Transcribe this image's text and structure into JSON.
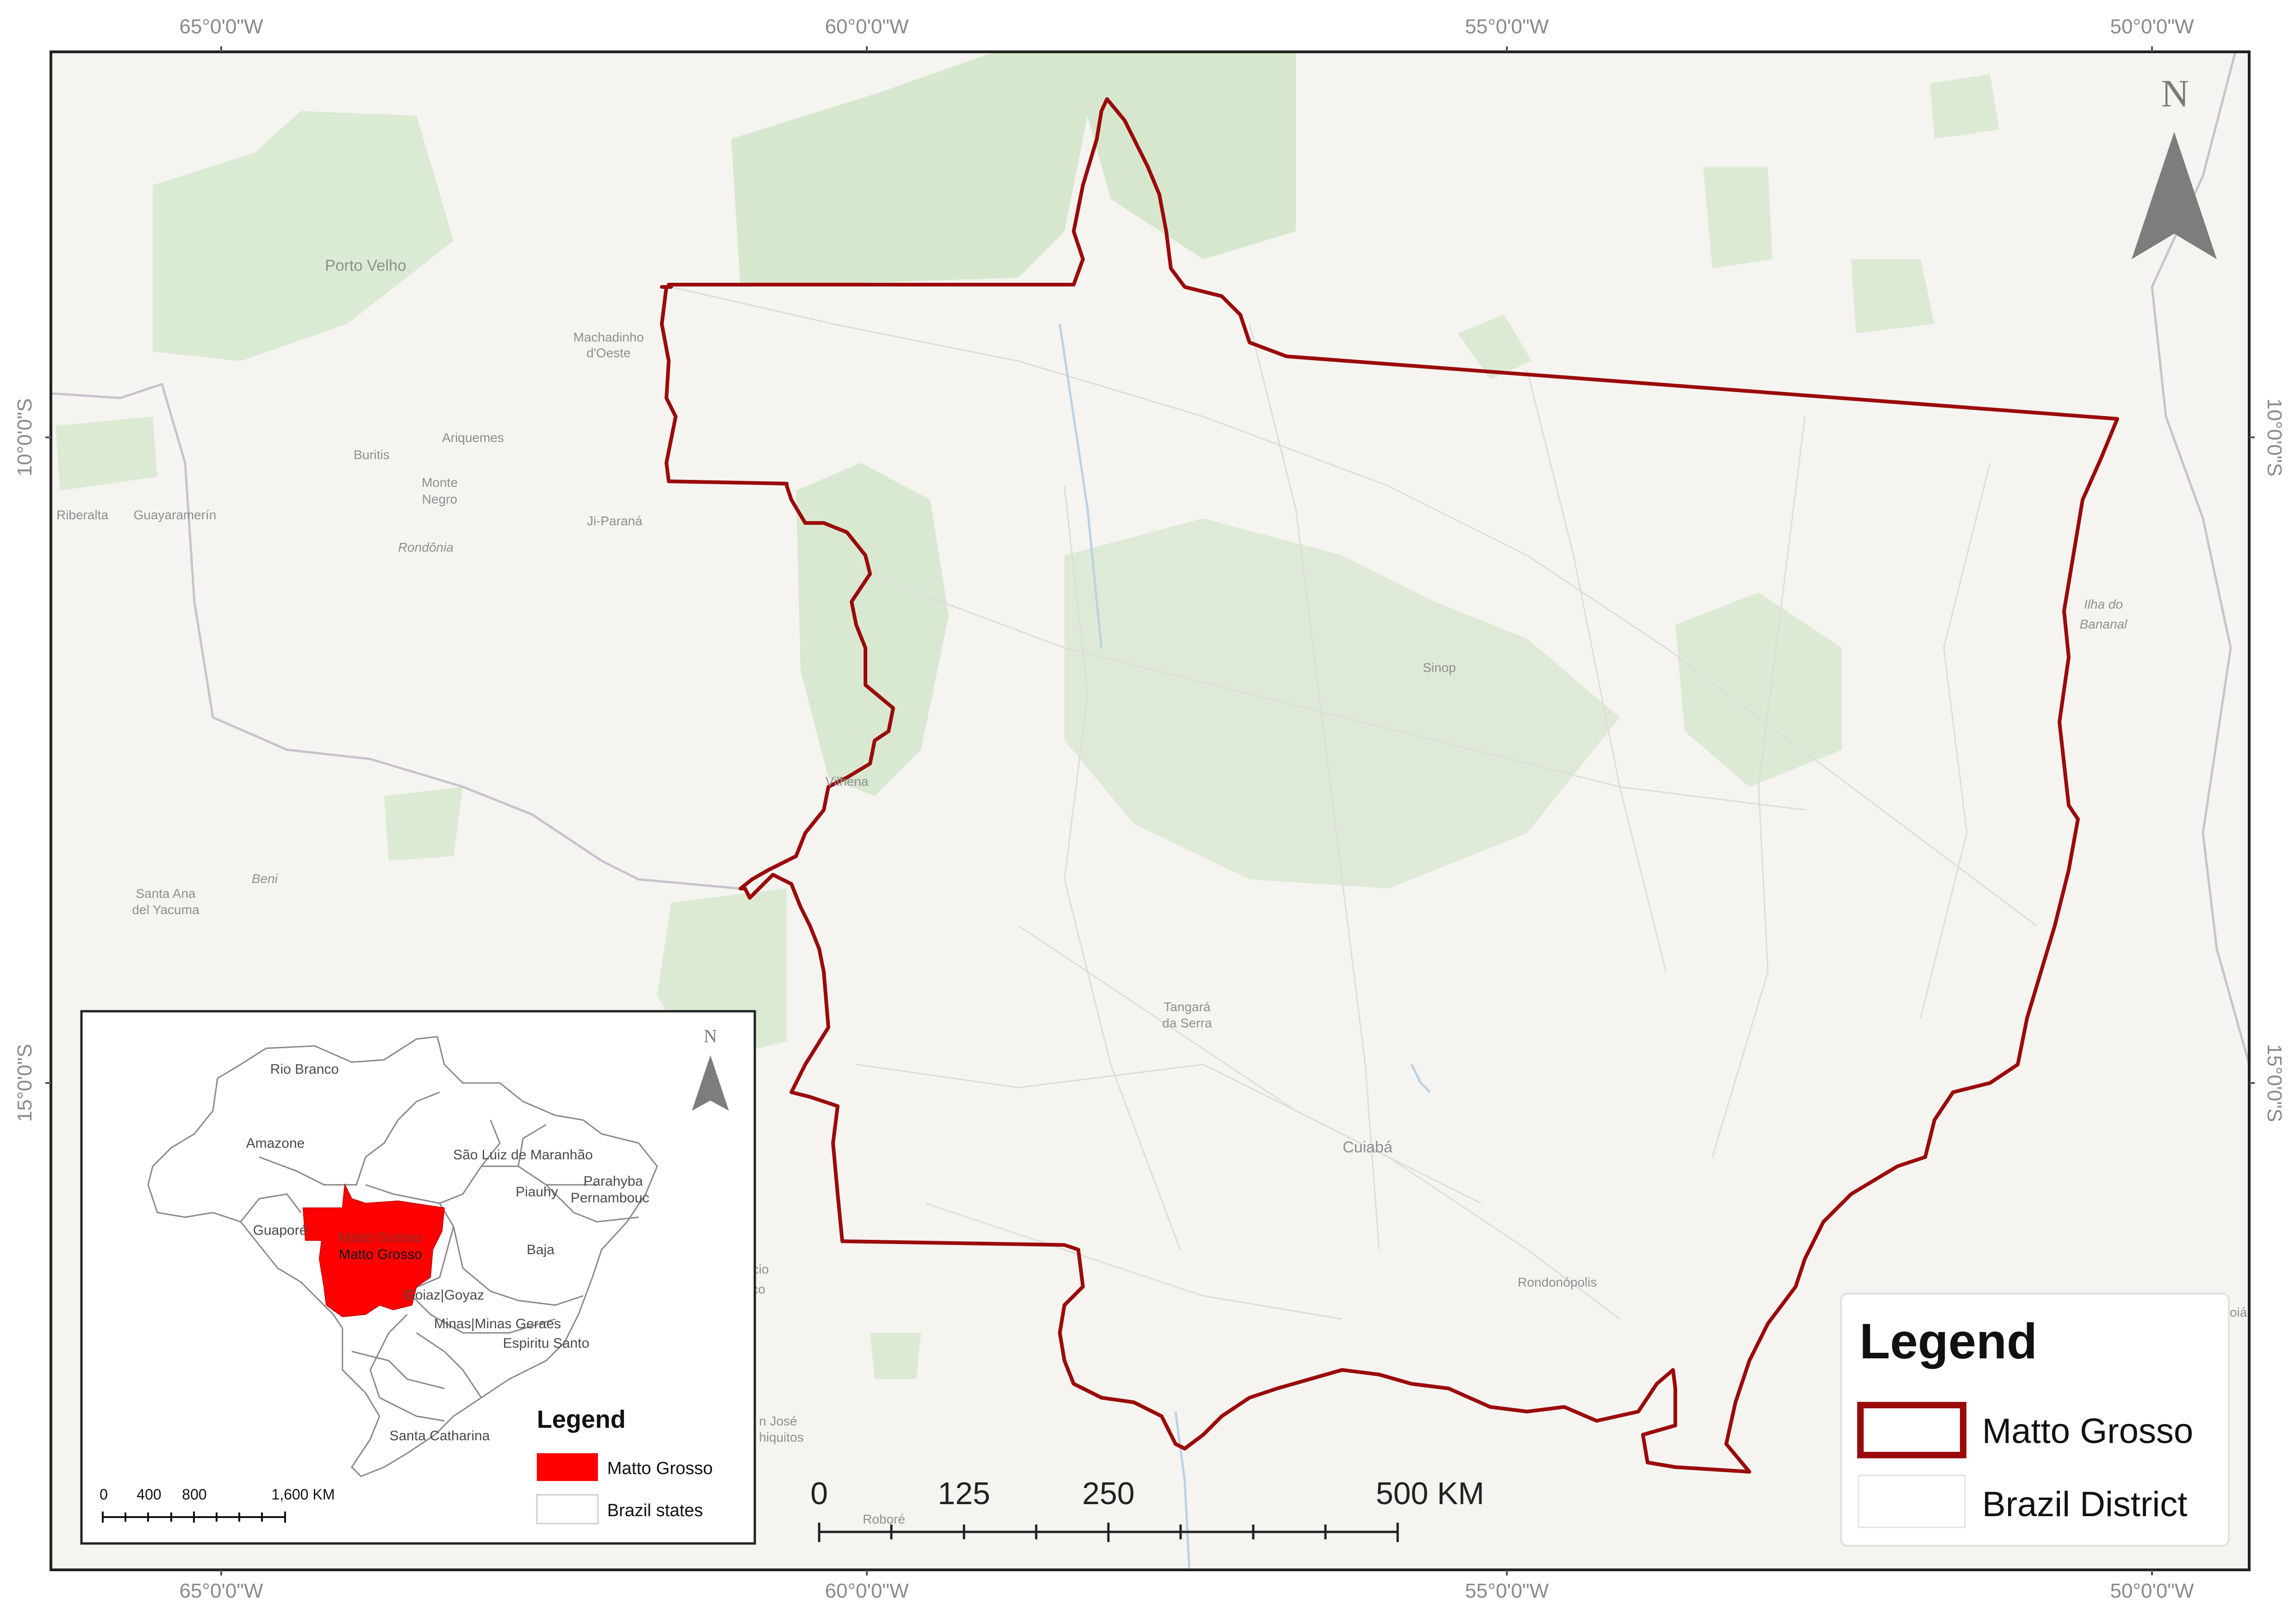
{
  "graticule": {
    "top": [
      "65°0'0\"W",
      "60°0'0\"W",
      "55°0'0\"W",
      "50°0'0\"W"
    ],
    "bottom": [
      "65°0'0\"W",
      "60°0'0\"W",
      "55°0'0\"W",
      "50°0'0\"W"
    ],
    "left": [
      "10°0'0\"S",
      "15°0'0\"S"
    ],
    "right": [
      "10°0'0\"S",
      "15°0'0\"S"
    ]
  },
  "north_arrow": {
    "label": "N"
  },
  "places": {
    "porto_velho": "Porto Velho",
    "machadinho_1": "Machadinho",
    "machadinho_2": "d'Oeste",
    "ariquemes": "Ariquemes",
    "buritis": "Buritis",
    "monte_negro_1": "Monte",
    "monte_negro_2": "Negro",
    "rondonia": "Rondônia",
    "riberalta": "Riberalta",
    "guayaramerin": "Guayaramerín",
    "ji_parana": "Ji-Paraná",
    "vilhena": "Vilhena",
    "beni": "Beni",
    "santa_ana_1": "Santa Ana",
    "santa_ana_2": "del Yacuma",
    "sinop": "Sinop",
    "ilha_1": "Ilha do",
    "ilha_2": "Bananal",
    "tangara_1": "Tangará",
    "tangara_2": "da Serra",
    "cuiaba": "Cuiabá",
    "rondonopolis": "Rondonópolis",
    "caceres_1": "acio",
    "caceres_2": "sco",
    "san_jose_1": "n José",
    "san_jose_2": "hiquitos",
    "robore": "Roboré",
    "right_edge": "oiá"
  },
  "scale_bar": {
    "labels": [
      "0",
      "125",
      "250",
      "500 KM"
    ]
  },
  "legend": {
    "title": "Legend",
    "items": [
      {
        "label": "Matto Grosso",
        "stroke": "#9b0a0a"
      },
      {
        "label": "Brazil District",
        "stroke": "#e2e2e2"
      }
    ]
  },
  "inset": {
    "north_label": "N",
    "states": {
      "rio_branco": "Rio Branco",
      "amazone": "Amazone",
      "sao_luiz": "São Luiz de Maranhão",
      "parahyba": "Parahyba",
      "pernambouc": "Pernambouc",
      "piauhy": "Piauhy",
      "guapore": "Guaporé",
      "matto_grosso_1": "Matto Grosso",
      "matto_grosso_2": "Matto Grosso",
      "baja": "Baja",
      "goiaz": "Goiaz|Goyaz",
      "minas": "Minas|Minas Geraes",
      "espiritu": "Espiritu Santo",
      "santa_catharina": "Santa Catharina"
    },
    "legend": {
      "title": "Legend",
      "items": [
        {
          "label": "Matto Grosso",
          "fill": "#ff0000"
        },
        {
          "label": "Brazil  states",
          "fill": "#ffffff"
        }
      ]
    },
    "scale_labels": [
      "0",
      "400",
      "800",
      "1,600 KM"
    ]
  },
  "colors": {
    "matto_grosso_outline": "#9b0a0a",
    "highlight_fill": "#ff0000",
    "forest": "#d6e7cd",
    "background": "#f5f4f1"
  }
}
